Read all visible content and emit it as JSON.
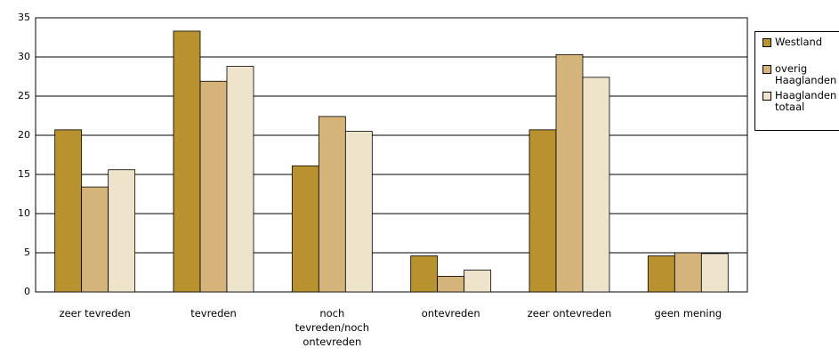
{
  "chart_data": {
    "type": "bar",
    "categories": [
      "zeer tevreden",
      "tevreden",
      "noch tevreden/noch ontevreden",
      "ontevreden",
      "zeer ontevreden",
      "geen mening"
    ],
    "series": [
      {
        "name": "Westland",
        "color": "#b8922f",
        "values": [
          20.7,
          33.3,
          16.1,
          4.6,
          20.7,
          4.6
        ]
      },
      {
        "name": "overig Haaglanden",
        "color": "#d5b47b",
        "values": [
          13.4,
          26.9,
          22.4,
          2.0,
          30.3,
          5.0
        ]
      },
      {
        "name": "Haaglanden totaal",
        "color": "#eee3cb",
        "values": [
          15.6,
          28.8,
          20.5,
          2.8,
          27.4,
          4.9
        ]
      }
    ],
    "ylim": [
      0,
      35
    ],
    "yticks": [
      0,
      5,
      10,
      15,
      20,
      25,
      30,
      35
    ],
    "grid": true,
    "legend": "right"
  }
}
